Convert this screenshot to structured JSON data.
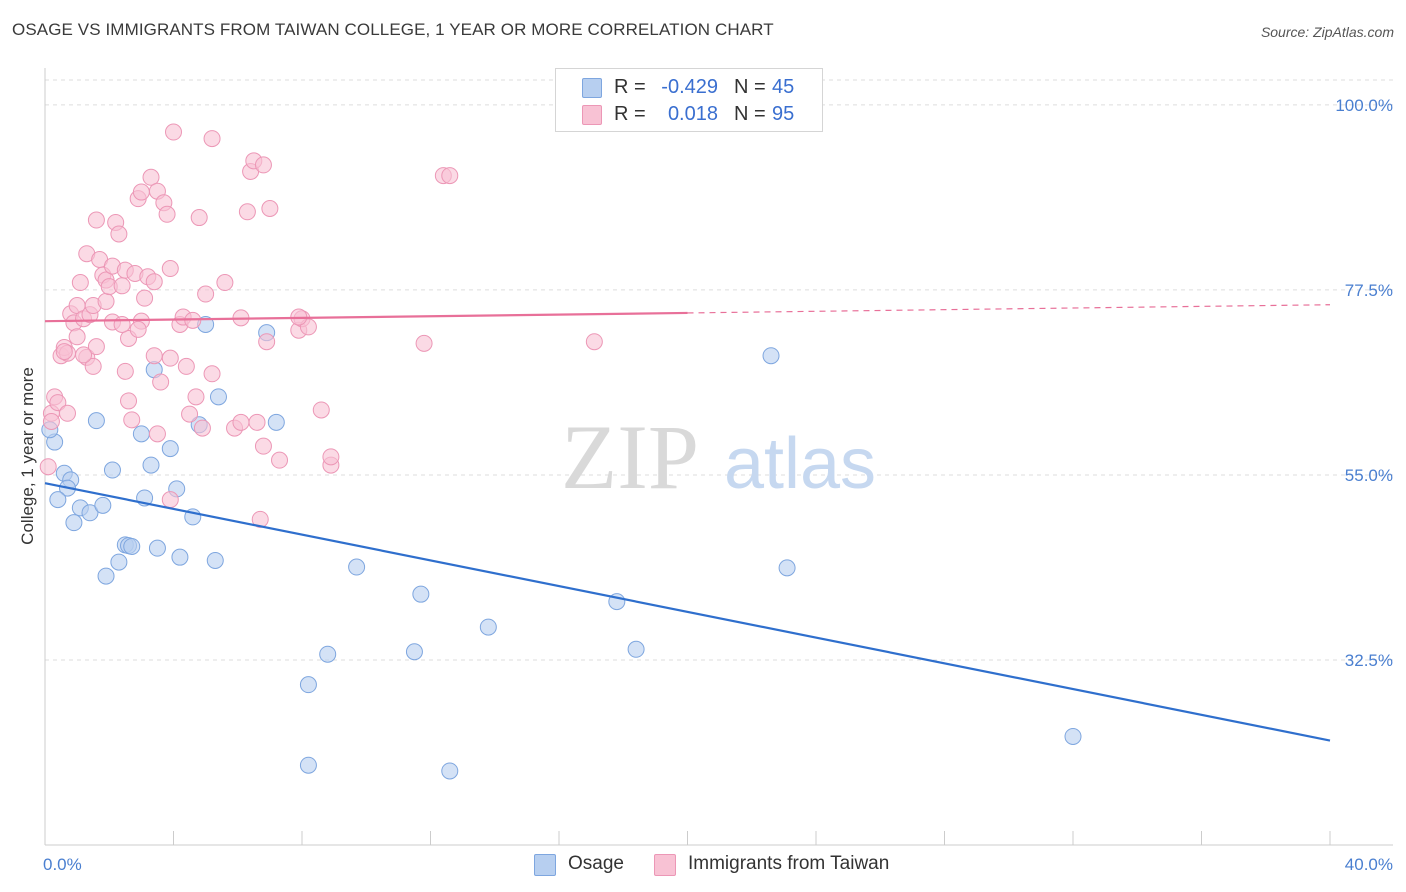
{
  "title": "OSAGE VS IMMIGRANTS FROM TAIWAN COLLEGE, 1 YEAR OR MORE CORRELATION CHART",
  "source": "Source: ZipAtlas.com",
  "watermark": {
    "zip": "ZIP",
    "atlas": "atlas"
  },
  "legend_top": {
    "rows": [
      {
        "r_label": "R =",
        "r_value": "-0.429",
        "n_label": "N =",
        "n_value": "45"
      },
      {
        "r_label": "R =",
        "r_value": "0.018",
        "n_label": "N =",
        "n_value": "95"
      }
    ]
  },
  "legend_bottom": {
    "osage": "Osage",
    "taiwan": "Immigrants from Taiwan"
  },
  "colors": {
    "osage_fill": "#b7cff0",
    "osage_stroke": "#7ea6df",
    "osage_line": "#2f6fcd",
    "taiwan_fill": "#f8c2d4",
    "taiwan_stroke": "#ec97b6",
    "taiwan_line": "#e87099",
    "tick": "#4a7fd0",
    "grid": "#dddddd"
  },
  "chart_data": {
    "type": "scatter",
    "xlabel": "",
    "ylabel": "College, 1 year or more",
    "xlim": [
      0,
      40
    ],
    "ylim": [
      10,
      104
    ],
    "x_tick_labels": [
      "0.0%",
      "40.0%"
    ],
    "y_ticks": [
      32.5,
      55.0,
      77.5,
      100.0
    ],
    "y_tick_labels": [
      "32.5%",
      "55.0%",
      "77.5%",
      "100.0%"
    ],
    "grid": true,
    "legend": "top-center",
    "series": [
      {
        "name": "Osage",
        "r": -0.429,
        "n": 45,
        "trend": {
          "x": [
            0,
            40
          ],
          "y": [
            54.0,
            22.7
          ]
        },
        "points": [
          [
            0.3,
            59.0
          ],
          [
            0.6,
            55.2
          ],
          [
            0.8,
            54.4
          ],
          [
            0.7,
            53.4
          ],
          [
            1.6,
            61.6
          ],
          [
            1.1,
            51.0
          ],
          [
            0.9,
            49.2
          ],
          [
            1.4,
            50.4
          ],
          [
            1.8,
            51.3
          ],
          [
            2.1,
            55.6
          ],
          [
            2.3,
            44.4
          ],
          [
            2.5,
            46.5
          ],
          [
            2.6,
            46.4
          ],
          [
            2.7,
            46.3
          ],
          [
            1.9,
            42.7
          ],
          [
            3.0,
            60.0
          ],
          [
            3.1,
            52.2
          ],
          [
            3.3,
            56.2
          ],
          [
            3.4,
            67.8
          ],
          [
            3.5,
            46.1
          ],
          [
            3.9,
            58.2
          ],
          [
            4.1,
            53.3
          ],
          [
            4.2,
            45.0
          ],
          [
            4.6,
            49.9
          ],
          [
            4.8,
            61.1
          ],
          [
            5.0,
            73.3
          ],
          [
            5.3,
            44.6
          ],
          [
            5.4,
            64.5
          ],
          [
            6.9,
            72.3
          ],
          [
            7.2,
            61.4
          ],
          [
            8.2,
            19.7
          ],
          [
            8.2,
            29.5
          ],
          [
            8.8,
            33.2
          ],
          [
            9.7,
            43.8
          ],
          [
            11.5,
            33.5
          ],
          [
            11.7,
            40.5
          ],
          [
            12.6,
            19.0
          ],
          [
            13.8,
            36.5
          ],
          [
            17.8,
            39.6
          ],
          [
            18.4,
            33.8
          ],
          [
            22.6,
            69.5
          ],
          [
            23.1,
            43.7
          ],
          [
            32.0,
            23.2
          ],
          [
            0.15,
            60.5
          ],
          [
            0.4,
            52.0
          ]
        ]
      },
      {
        "name": "Immigrants from Taiwan",
        "r": 0.018,
        "n": 95,
        "trend": {
          "x": [
            0,
            20
          ],
          "y": [
            73.7,
            74.7
          ]
        },
        "trend_dashed": {
          "x": [
            20,
            40
          ],
          "y": [
            74.7,
            75.7
          ]
        },
        "points": [
          [
            0.1,
            56.0
          ],
          [
            0.2,
            62.5
          ],
          [
            0.3,
            64.5
          ],
          [
            0.4,
            63.8
          ],
          [
            0.5,
            69.5
          ],
          [
            0.6,
            70.5
          ],
          [
            0.7,
            69.8
          ],
          [
            0.8,
            74.6
          ],
          [
            0.9,
            73.5
          ],
          [
            0.7,
            62.5
          ],
          [
            1.0,
            71.8
          ],
          [
            1.0,
            75.6
          ],
          [
            1.1,
            78.4
          ],
          [
            1.2,
            74.0
          ],
          [
            1.3,
            81.9
          ],
          [
            1.3,
            69.3
          ],
          [
            1.4,
            74.5
          ],
          [
            1.5,
            75.6
          ],
          [
            1.5,
            68.2
          ],
          [
            1.6,
            70.6
          ],
          [
            1.7,
            81.2
          ],
          [
            1.8,
            79.3
          ],
          [
            1.9,
            76.1
          ],
          [
            1.9,
            78.7
          ],
          [
            2.0,
            77.9
          ],
          [
            2.1,
            80.4
          ],
          [
            2.1,
            73.6
          ],
          [
            2.2,
            85.7
          ],
          [
            2.3,
            84.3
          ],
          [
            2.4,
            78.0
          ],
          [
            2.5,
            79.9
          ],
          [
            2.5,
            67.6
          ],
          [
            2.6,
            71.6
          ],
          [
            2.6,
            64.0
          ],
          [
            2.7,
            61.7
          ],
          [
            2.8,
            79.5
          ],
          [
            2.9,
            88.6
          ],
          [
            3.0,
            89.4
          ],
          [
            3.0,
            73.7
          ],
          [
            3.1,
            76.5
          ],
          [
            3.2,
            79.1
          ],
          [
            3.3,
            91.2
          ],
          [
            3.4,
            78.5
          ],
          [
            3.4,
            69.5
          ],
          [
            3.5,
            60.0
          ],
          [
            3.5,
            89.5
          ],
          [
            3.6,
            66.3
          ],
          [
            3.7,
            88.1
          ],
          [
            3.8,
            86.7
          ],
          [
            3.9,
            69.2
          ],
          [
            3.9,
            52.0
          ],
          [
            4.0,
            96.7
          ],
          [
            4.2,
            73.3
          ],
          [
            4.3,
            74.2
          ],
          [
            4.4,
            68.2
          ],
          [
            4.5,
            62.4
          ],
          [
            4.7,
            64.5
          ],
          [
            4.8,
            86.3
          ],
          [
            4.9,
            60.7
          ],
          [
            5.0,
            77.0
          ],
          [
            5.2,
            95.9
          ],
          [
            5.6,
            78.4
          ],
          [
            5.9,
            60.7
          ],
          [
            6.1,
            61.4
          ],
          [
            6.1,
            74.1
          ],
          [
            6.3,
            87.0
          ],
          [
            6.4,
            91.9
          ],
          [
            6.5,
            93.2
          ],
          [
            6.6,
            61.4
          ],
          [
            6.7,
            49.6
          ],
          [
            6.8,
            92.7
          ],
          [
            6.8,
            58.5
          ],
          [
            6.9,
            71.2
          ],
          [
            7.0,
            87.4
          ],
          [
            7.3,
            56.8
          ],
          [
            7.9,
            72.6
          ],
          [
            8.0,
            74.0
          ],
          [
            8.2,
            73.0
          ],
          [
            8.6,
            62.9
          ],
          [
            8.9,
            56.2
          ],
          [
            8.9,
            57.2
          ],
          [
            11.8,
            71.0
          ],
          [
            12.4,
            91.4
          ],
          [
            12.6,
            91.4
          ],
          [
            17.1,
            71.2
          ],
          [
            7.9,
            74.2
          ],
          [
            0.2,
            61.5
          ],
          [
            0.6,
            70.0
          ],
          [
            2.9,
            72.7
          ],
          [
            3.9,
            80.1
          ],
          [
            5.2,
            67.3
          ],
          [
            1.2,
            69.6
          ],
          [
            2.4,
            73.3
          ],
          [
            1.6,
            86.0
          ],
          [
            4.6,
            73.8
          ]
        ]
      }
    ]
  }
}
